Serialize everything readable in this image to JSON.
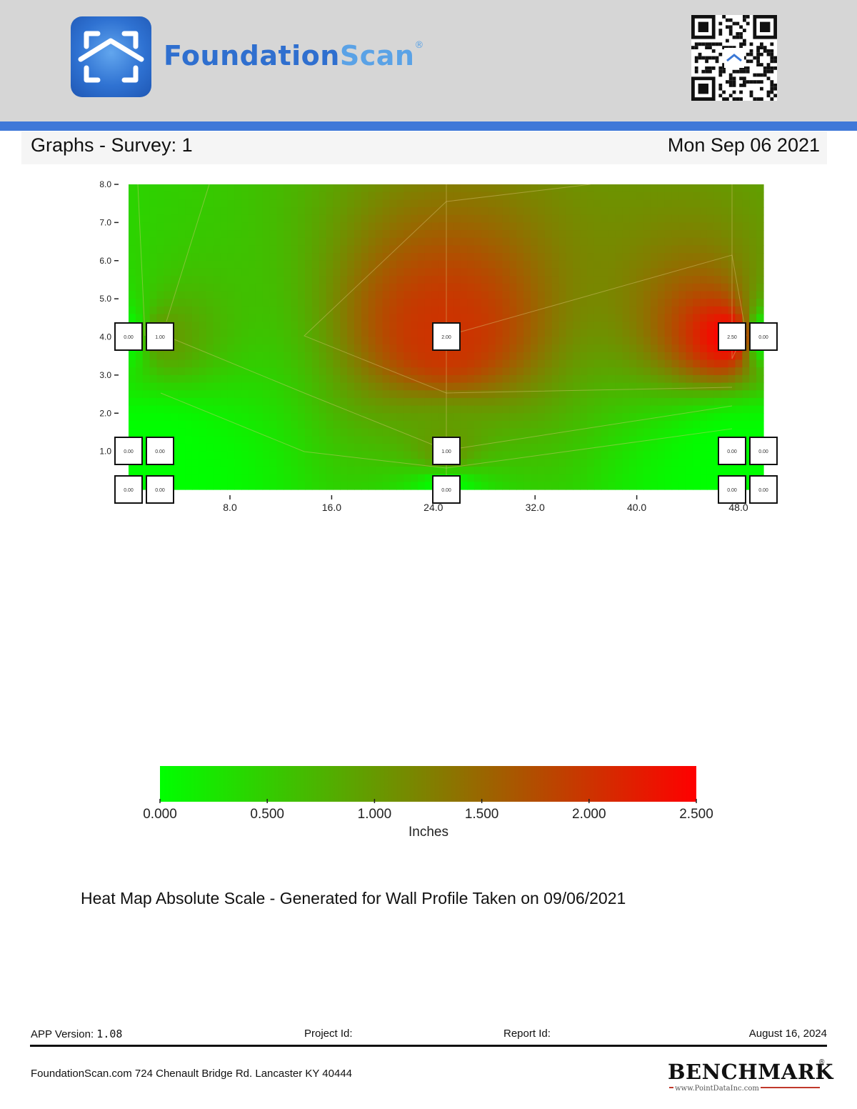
{
  "header": {
    "brand_part1": "Foundation",
    "brand_part2": "Scan",
    "brand_reg": "®",
    "logo_icon": "house-scan-icon",
    "qr_icon": "qr-code-icon"
  },
  "title_bar": {
    "title": "Graphs - Survey: 1",
    "date": "Mon Sep 06 2021"
  },
  "colors": {
    "header_bg": "#d6d6d6",
    "accent_bar": "#3f78d8",
    "low": "#00ff00",
    "mid": "#808000",
    "high": "#ff0000"
  },
  "chart_data": [
    {
      "type": "heatmap",
      "title": "",
      "xlabel": "",
      "ylabel": "",
      "xlim": [
        0,
        50
      ],
      "ylim": [
        0,
        8
      ],
      "x_ticks": [
        "8.0",
        "16.0",
        "24.0",
        "32.0",
        "40.0",
        "48.0"
      ],
      "x_tick_values": [
        8,
        16,
        24,
        32,
        40,
        48
      ],
      "y_ticks": [
        "1.0",
        "2.0",
        "3.0",
        "4.0",
        "5.0",
        "6.0",
        "7.0",
        "8.0"
      ],
      "y_tick_values": [
        1,
        2,
        3,
        4,
        5,
        6,
        7,
        8
      ],
      "measurement_points": [
        {
          "x": 0.0,
          "y": 4,
          "value": "0.00"
        },
        {
          "x": 2.5,
          "y": 4,
          "value": "1.00"
        },
        {
          "x": 25.0,
          "y": 4,
          "value": "2.00"
        },
        {
          "x": 47.5,
          "y": 4,
          "value": "2.50"
        },
        {
          "x": 50.0,
          "y": 4,
          "value": "0.00"
        },
        {
          "x": 0.0,
          "y": 1,
          "value": "0.00"
        },
        {
          "x": 2.5,
          "y": 1,
          "value": "0.00"
        },
        {
          "x": 25.0,
          "y": 1,
          "value": "1.00"
        },
        {
          "x": 47.5,
          "y": 1,
          "value": "0.00"
        },
        {
          "x": 50.0,
          "y": 1,
          "value": "0.00"
        },
        {
          "x": 0.0,
          "y": 0,
          "value": "0.00"
        },
        {
          "x": 2.5,
          "y": 0,
          "value": "0.00"
        },
        {
          "x": 25.0,
          "y": 0,
          "value": "0.00"
        },
        {
          "x": 47.5,
          "y": 0,
          "value": "0.00"
        },
        {
          "x": 50.0,
          "y": 0,
          "value": "0.00"
        }
      ]
    },
    {
      "type": "colorbar",
      "range": [
        0,
        2.5
      ],
      "ticks": [
        "0.000",
        "0.500",
        "1.000",
        "1.500",
        "2.000",
        "2.500"
      ],
      "tick_values": [
        0,
        0.5,
        1.0,
        1.5,
        2.0,
        2.5
      ],
      "label": "Inches"
    }
  ],
  "caption": "Heat Map Absolute Scale - Generated for Wall Profile Taken on 09/06/2021",
  "footer": {
    "app_version_label": "APP Version:",
    "app_version_value": "1.08",
    "project_label": "Project Id:",
    "report_label": "Report Id:",
    "report_date": "August 16, 2024",
    "address": "FoundationScan.com 724 Chenault Bridge Rd. Lancaster KY 40444",
    "benchmark_word": "BENCHMARK",
    "benchmark_reg": "®",
    "benchmark_url": "www.PointDataInc.com"
  }
}
